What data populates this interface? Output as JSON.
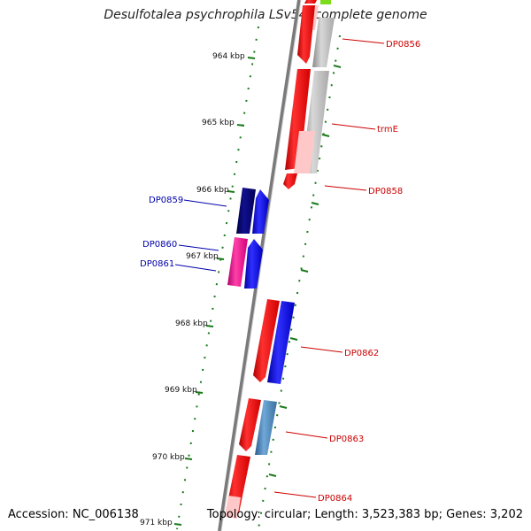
{
  "title": "Desulfotalea psychrophila LSv54, complete genome",
  "accession": "Accession: NC_006138",
  "topology": "Topology: circular; Length: 3,523,383 bp; Genes: 3,202",
  "ticks": [
    "964 kbp",
    "965 kbp",
    "966 kbp",
    "967 kbp",
    "968 kbp",
    "969 kbp",
    "970 kbp",
    "971 kbp"
  ],
  "colors": {
    "backbone": "#8a8a8a",
    "tick": "#1a7a1a",
    "forward_gene": "#ff0000",
    "reverse_gene": "#0000ff",
    "label_forward": "#cc0000",
    "label_reverse": "#0000aa"
  },
  "genes": [
    {
      "label": "DP0856",
      "strand": "forward",
      "color": "#b8b8b8"
    },
    {
      "label": "trmE",
      "strand": "forward",
      "color": "#b8b8b8"
    },
    {
      "label": "DP0858",
      "strand": "forward",
      "color": "#ff0000"
    },
    {
      "label": "DP0859",
      "strand": "reverse",
      "color": "#000066"
    },
    {
      "label": "DP0860",
      "strand": "reverse",
      "color": "#ff1493"
    },
    {
      "label": "DP0861",
      "strand": "reverse",
      "color": "#0000ff"
    },
    {
      "label": "DP0862",
      "strand": "forward",
      "color": "#0000ff"
    },
    {
      "label": "DP0863",
      "strand": "forward",
      "color": "#4682b4"
    },
    {
      "label": "DP0864",
      "strand": "forward",
      "color": "#ff0000"
    }
  ]
}
